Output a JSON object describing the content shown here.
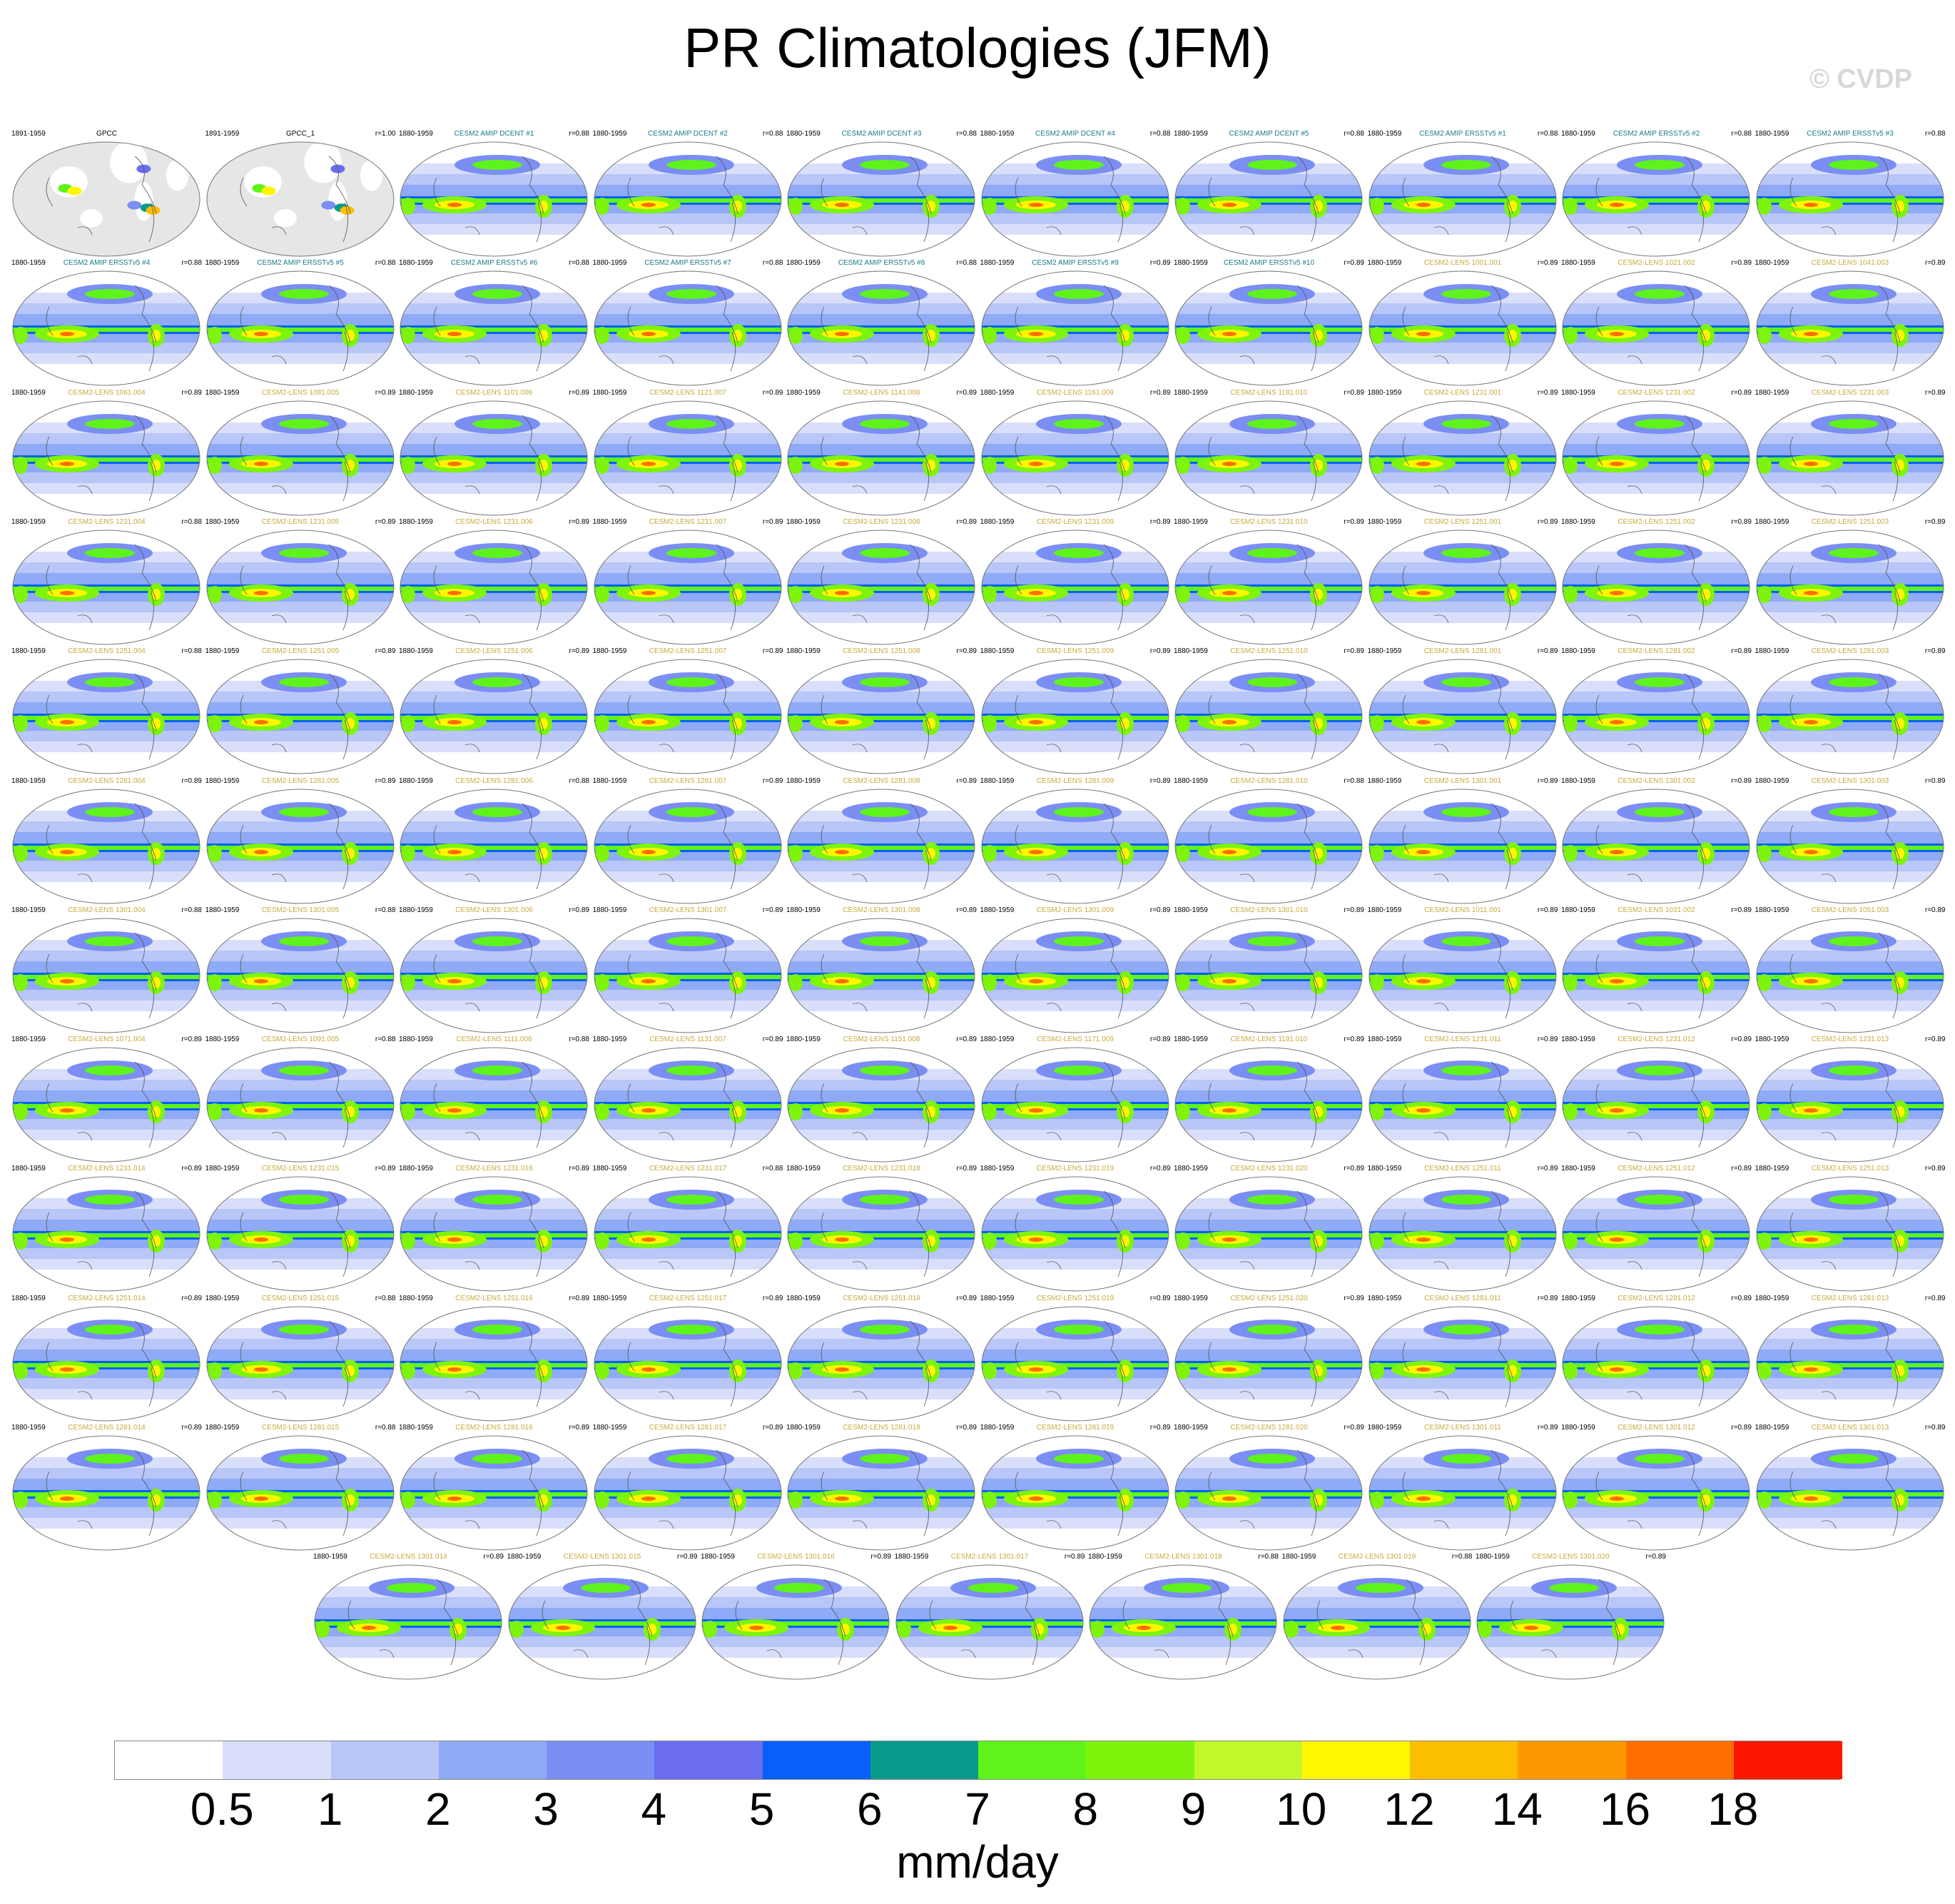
{
  "title": "PR Climatologies (JFM)",
  "watermark": "© CVDP",
  "units": "mm/day",
  "chart_data": {
    "type": "heatmap",
    "title": "PR Climatologies (JFM)",
    "colorbar": {
      "label": "mm/day",
      "ticks": [
        "0.5",
        "1",
        "2",
        "3",
        "4",
        "5",
        "6",
        "7",
        "8",
        "9",
        "10",
        "12",
        "14",
        "16",
        "18"
      ],
      "colors": [
        "#ffffff",
        "#d9dffa",
        "#b8c6f8",
        "#8faaf6",
        "#7b8ef3",
        "#6a6df0",
        "#0660f9",
        "#0a9a8c",
        "#5ef31a",
        "#7ef40d",
        "#c0f82a",
        "#fff600",
        "#fbbe00",
        "#fc9900",
        "#fd6e00",
        "#fb1600"
      ]
    },
    "panels": [
      {
        "name": "GPCC",
        "years": "1891-1959",
        "r": ""
      },
      {
        "name": "GPCC_1",
        "years": "1891-1959",
        "r": "r=1.00"
      },
      {
        "name": "CESM2 AMIP DCENT #1",
        "years": "1880-1959",
        "r": "r=0.88"
      },
      {
        "name": "CESM2 AMIP DCENT #2",
        "years": "1880-1959",
        "r": "r=0.88"
      },
      {
        "name": "CESM2 AMIP DCENT #3",
        "years": "1880-1959",
        "r": "r=0.88"
      },
      {
        "name": "CESM2 AMIP DCENT #4",
        "years": "1880-1959",
        "r": "r=0.88"
      },
      {
        "name": "CESM2 AMIP DCENT #5",
        "years": "1880-1959",
        "r": "r=0.88"
      },
      {
        "name": "CESM2 AMIP ERSSTv5 #1",
        "years": "1880-1959",
        "r": "r=0.88"
      },
      {
        "name": "CESM2 AMIP ERSSTv5 #2",
        "years": "1880-1959",
        "r": "r=0.88"
      },
      {
        "name": "CESM2 AMIP ERSSTv5 #3",
        "years": "1880-1959",
        "r": "r=0.88"
      },
      {
        "name": "CESM2 AMIP ERSSTv5 #4",
        "years": "1880-1959",
        "r": "r=0.88"
      },
      {
        "name": "CESM2 AMIP ERSSTv5 #5",
        "years": "1880-1959",
        "r": "r=0.88"
      },
      {
        "name": "CESM2 AMIP ERSSTv5 #6",
        "years": "1880-1959",
        "r": "r=0.88"
      },
      {
        "name": "CESM2 AMIP ERSSTv5 #7",
        "years": "1880-1959",
        "r": "r=0.88"
      },
      {
        "name": "CESM2 AMIP ERSSTv5 #8",
        "years": "1880-1959",
        "r": "r=0.88"
      },
      {
        "name": "CESM2 AMIP ERSSTv5 #9",
        "years": "1880-1959",
        "r": "r=0.89"
      },
      {
        "name": "CESM2 AMIP ERSSTv5 #10",
        "years": "1880-1959",
        "r": "r=0.89"
      },
      {
        "name": "CESM2-LENS 1001.001",
        "years": "1880-1959",
        "r": "r=0.89"
      },
      {
        "name": "CESM2-LENS 1021.002",
        "years": "1880-1959",
        "r": "r=0.89"
      },
      {
        "name": "CESM2-LENS 1041.003",
        "years": "1880-1959",
        "r": "r=0.89"
      },
      {
        "name": "CESM2-LENS 1061.004",
        "years": "1880-1959",
        "r": "r=0.89"
      },
      {
        "name": "CESM2-LENS 1081.005",
        "years": "1880-1959",
        "r": "r=0.89"
      },
      {
        "name": "CESM2-LENS 1101.006",
        "years": "1880-1959",
        "r": "r=0.89"
      },
      {
        "name": "CESM2-LENS 1121.007",
        "years": "1880-1959",
        "r": "r=0.89"
      },
      {
        "name": "CESM2-LENS 1141.008",
        "years": "1880-1959",
        "r": "r=0.89"
      },
      {
        "name": "CESM2-LENS 1161.009",
        "years": "1880-1959",
        "r": "r=0.89"
      },
      {
        "name": "CESM2-LENS 1181.010",
        "years": "1880-1959",
        "r": "r=0.89"
      },
      {
        "name": "CESM2-LENS 1231.001",
        "years": "1880-1959",
        "r": "r=0.89"
      },
      {
        "name": "CESM2-LENS 1231.002",
        "years": "1880-1959",
        "r": "r=0.89"
      },
      {
        "name": "CESM2-LENS 1231.003",
        "years": "1880-1959",
        "r": "r=0.89"
      },
      {
        "name": "CESM2-LENS 1231.004",
        "years": "1880-1959",
        "r": "r=0.88"
      },
      {
        "name": "CESM2-LENS 1231.005",
        "years": "1880-1959",
        "r": "r=0.89"
      },
      {
        "name": "CESM2-LENS 1231.006",
        "years": "1880-1959",
        "r": "r=0.89"
      },
      {
        "name": "CESM2-LENS 1231.007",
        "years": "1880-1959",
        "r": "r=0.89"
      },
      {
        "name": "CESM2-LENS 1231.008",
        "years": "1880-1959",
        "r": "r=0.89"
      },
      {
        "name": "CESM2-LENS 1231.009",
        "years": "1880-1959",
        "r": "r=0.89"
      },
      {
        "name": "CESM2-LENS 1231.010",
        "years": "1880-1959",
        "r": "r=0.89"
      },
      {
        "name": "CESM2-LENS 1251.001",
        "years": "1880-1959",
        "r": "r=0.89"
      },
      {
        "name": "CESM2-LENS 1251.002",
        "years": "1880-1959",
        "r": "r=0.89"
      },
      {
        "name": "CESM2-LENS 1251.003",
        "years": "1880-1959",
        "r": "r=0.89"
      },
      {
        "name": "CESM2-LENS 1251.004",
        "years": "1880-1959",
        "r": "r=0.88"
      },
      {
        "name": "CESM2-LENS 1251.005",
        "years": "1880-1959",
        "r": "r=0.89"
      },
      {
        "name": "CESM2-LENS 1251.006",
        "years": "1880-1959",
        "r": "r=0.89"
      },
      {
        "name": "CESM2-LENS 1251.007",
        "years": "1880-1959",
        "r": "r=0.89"
      },
      {
        "name": "CESM2-LENS 1251.008",
        "years": "1880-1959",
        "r": "r=0.89"
      },
      {
        "name": "CESM2-LENS 1251.009",
        "years": "1880-1959",
        "r": "r=0.89"
      },
      {
        "name": "CESM2-LENS 1251.010",
        "years": "1880-1959",
        "r": "r=0.89"
      },
      {
        "name": "CESM2-LENS 1281.001",
        "years": "1880-1959",
        "r": "r=0.89"
      },
      {
        "name": "CESM2-LENS 1281.002",
        "years": "1880-1959",
        "r": "r=0.89"
      },
      {
        "name": "CESM2-LENS 1281.003",
        "years": "1880-1959",
        "r": "r=0.89"
      },
      {
        "name": "CESM2-LENS 1281.004",
        "years": "1880-1959",
        "r": "r=0.89"
      },
      {
        "name": "CESM2-LENS 1281.005",
        "years": "1880-1959",
        "r": "r=0.89"
      },
      {
        "name": "CESM2-LENS 1281.006",
        "years": "1880-1959",
        "r": "r=0.88"
      },
      {
        "name": "CESM2-LENS 1281.007",
        "years": "1880-1959",
        "r": "r=0.89"
      },
      {
        "name": "CESM2-LENS 1281.008",
        "years": "1880-1959",
        "r": "r=0.89"
      },
      {
        "name": "CESM2-LENS 1281.009",
        "years": "1880-1959",
        "r": "r=0.89"
      },
      {
        "name": "CESM2-LENS 1281.010",
        "years": "1880-1959",
        "r": "r=0.88"
      },
      {
        "name": "CESM2-LENS 1301.001",
        "years": "1880-1959",
        "r": "r=0.89"
      },
      {
        "name": "CESM2-LENS 1301.002",
        "years": "1880-1959",
        "r": "r=0.89"
      },
      {
        "name": "CESM2-LENS 1301.003",
        "years": "1880-1959",
        "r": "r=0.89"
      },
      {
        "name": "CESM2-LENS 1301.004",
        "years": "1880-1959",
        "r": "r=0.88"
      },
      {
        "name": "CESM2-LENS 1301.005",
        "years": "1880-1959",
        "r": "r=0.88"
      },
      {
        "name": "CESM2-LENS 1301.006",
        "years": "1880-1959",
        "r": "r=0.89"
      },
      {
        "name": "CESM2-LENS 1301.007",
        "years": "1880-1959",
        "r": "r=0.89"
      },
      {
        "name": "CESM2-LENS 1301.008",
        "years": "1880-1959",
        "r": "r=0.89"
      },
      {
        "name": "CESM2-LENS 1301.009",
        "years": "1880-1959",
        "r": "r=0.89"
      },
      {
        "name": "CESM2-LENS 1301.010",
        "years": "1880-1959",
        "r": "r=0.89"
      },
      {
        "name": "CESM2-LENS 1011.001",
        "years": "1880-1959",
        "r": "r=0.89"
      },
      {
        "name": "CESM2-LENS 1031.002",
        "years": "1880-1959",
        "r": "r=0.89"
      },
      {
        "name": "CESM2-LENS 1051.003",
        "years": "1880-1959",
        "r": "r=0.89"
      },
      {
        "name": "CESM2-LENS 1071.004",
        "years": "1880-1959",
        "r": "r=0.89"
      },
      {
        "name": "CESM2-LENS 1091.005",
        "years": "1880-1959",
        "r": "r=0.88"
      },
      {
        "name": "CESM2-LENS 1111.006",
        "years": "1880-1959",
        "r": "r=0.88"
      },
      {
        "name": "CESM2-LENS 1131.007",
        "years": "1880-1959",
        "r": "r=0.89"
      },
      {
        "name": "CESM2-LENS 1151.008",
        "years": "1880-1959",
        "r": "r=0.89"
      },
      {
        "name": "CESM2-LENS 1171.009",
        "years": "1880-1959",
        "r": "r=0.89"
      },
      {
        "name": "CESM2-LENS 1191.010",
        "years": "1880-1959",
        "r": "r=0.89"
      },
      {
        "name": "CESM2-LENS 1231.011",
        "years": "1880-1959",
        "r": "r=0.89"
      },
      {
        "name": "CESM2-LENS 1231.012",
        "years": "1880-1959",
        "r": "r=0.89"
      },
      {
        "name": "CESM2-LENS 1231.013",
        "years": "1880-1959",
        "r": "r=0.89"
      },
      {
        "name": "CESM2-LENS 1231.014",
        "years": "1880-1959",
        "r": "r=0.89"
      },
      {
        "name": "CESM2-LENS 1231.015",
        "years": "1880-1959",
        "r": "r=0.89"
      },
      {
        "name": "CESM2-LENS 1231.016",
        "years": "1880-1959",
        "r": "r=0.89"
      },
      {
        "name": "CESM2-LENS 1231.017",
        "years": "1880-1959",
        "r": "r=0.88"
      },
      {
        "name": "CESM2-LENS 1231.018",
        "years": "1880-1959",
        "r": "r=0.89"
      },
      {
        "name": "CESM2-LENS 1231.019",
        "years": "1880-1959",
        "r": "r=0.89"
      },
      {
        "name": "CESM2-LENS 1231.020",
        "years": "1880-1959",
        "r": "r=0.89"
      },
      {
        "name": "CESM2-LENS 1251.011",
        "years": "1880-1959",
        "r": "r=0.89"
      },
      {
        "name": "CESM2-LENS 1251.012",
        "years": "1880-1959",
        "r": "r=0.89"
      },
      {
        "name": "CESM2-LENS 1251.013",
        "years": "1880-1959",
        "r": "r=0.89"
      },
      {
        "name": "CESM2-LENS 1251.014",
        "years": "1880-1959",
        "r": "r=0.89"
      },
      {
        "name": "CESM2-LENS 1251.015",
        "years": "1880-1959",
        "r": "r=0.88"
      },
      {
        "name": "CESM2-LENS 1251.016",
        "years": "1880-1959",
        "r": "r=0.89"
      },
      {
        "name": "CESM2-LENS 1251.017",
        "years": "1880-1959",
        "r": "r=0.89"
      },
      {
        "name": "CESM2-LENS 1251.018",
        "years": "1880-1959",
        "r": "r=0.89"
      },
      {
        "name": "CESM2-LENS 1251.019",
        "years": "1880-1959",
        "r": "r=0.89"
      },
      {
        "name": "CESM2-LENS 1251.020",
        "years": "1880-1959",
        "r": "r=0.89"
      },
      {
        "name": "CESM2-LENS 1281.011",
        "years": "1880-1959",
        "r": "r=0.89"
      },
      {
        "name": "CESM2-LENS 1281.012",
        "years": "1880-1959",
        "r": "r=0.89"
      },
      {
        "name": "CESM2-LENS 1281.013",
        "years": "1880-1959",
        "r": "r=0.89"
      },
      {
        "name": "CESM2-LENS 1281.014",
        "years": "1880-1959",
        "r": "r=0.89"
      },
      {
        "name": "CESM2-LENS 1281.015",
        "years": "1880-1959",
        "r": "r=0.88"
      },
      {
        "name": "CESM2-LENS 1281.016",
        "years": "1880-1959",
        "r": "r=0.89"
      },
      {
        "name": "CESM2-LENS 1281.017",
        "years": "1880-1959",
        "r": "r=0.89"
      },
      {
        "name": "CESM2-LENS 1281.018",
        "years": "1880-1959",
        "r": "r=0.89"
      },
      {
        "name": "CESM2-LENS 1281.019",
        "years": "1880-1959",
        "r": "r=0.89"
      },
      {
        "name": "CESM2-LENS 1281.020",
        "years": "1880-1959",
        "r": "r=0.89"
      },
      {
        "name": "CESM2-LENS 1301.011",
        "years": "1880-1959",
        "r": "r=0.89"
      },
      {
        "name": "CESM2-LENS 1301.012",
        "years": "1880-1959",
        "r": "r=0.89"
      },
      {
        "name": "CESM2-LENS 1301.013",
        "years": "1880-1959",
        "r": "r=0.89"
      },
      {
        "name": "CESM2-LENS 1301.014",
        "years": "1880-1959",
        "r": "r=0.89"
      },
      {
        "name": "CESM2-LENS 1301.015",
        "years": "1880-1959",
        "r": "r=0.89"
      },
      {
        "name": "CESM2-LENS 1301.016",
        "years": "1880-1959",
        "r": "r=0.89"
      },
      {
        "name": "CESM2-LENS 1301.017",
        "years": "1880-1959",
        "r": "r=0.89"
      },
      {
        "name": "CESM2-LENS 1301.018",
        "years": "1880-1959",
        "r": "r=0.88"
      },
      {
        "name": "CESM2-LENS 1301.019",
        "years": "1880-1959",
        "r": "r=0.88"
      },
      {
        "name": "CESM2-LENS 1301.020",
        "years": "1880-1959",
        "r": "r=0.89"
      }
    ]
  }
}
